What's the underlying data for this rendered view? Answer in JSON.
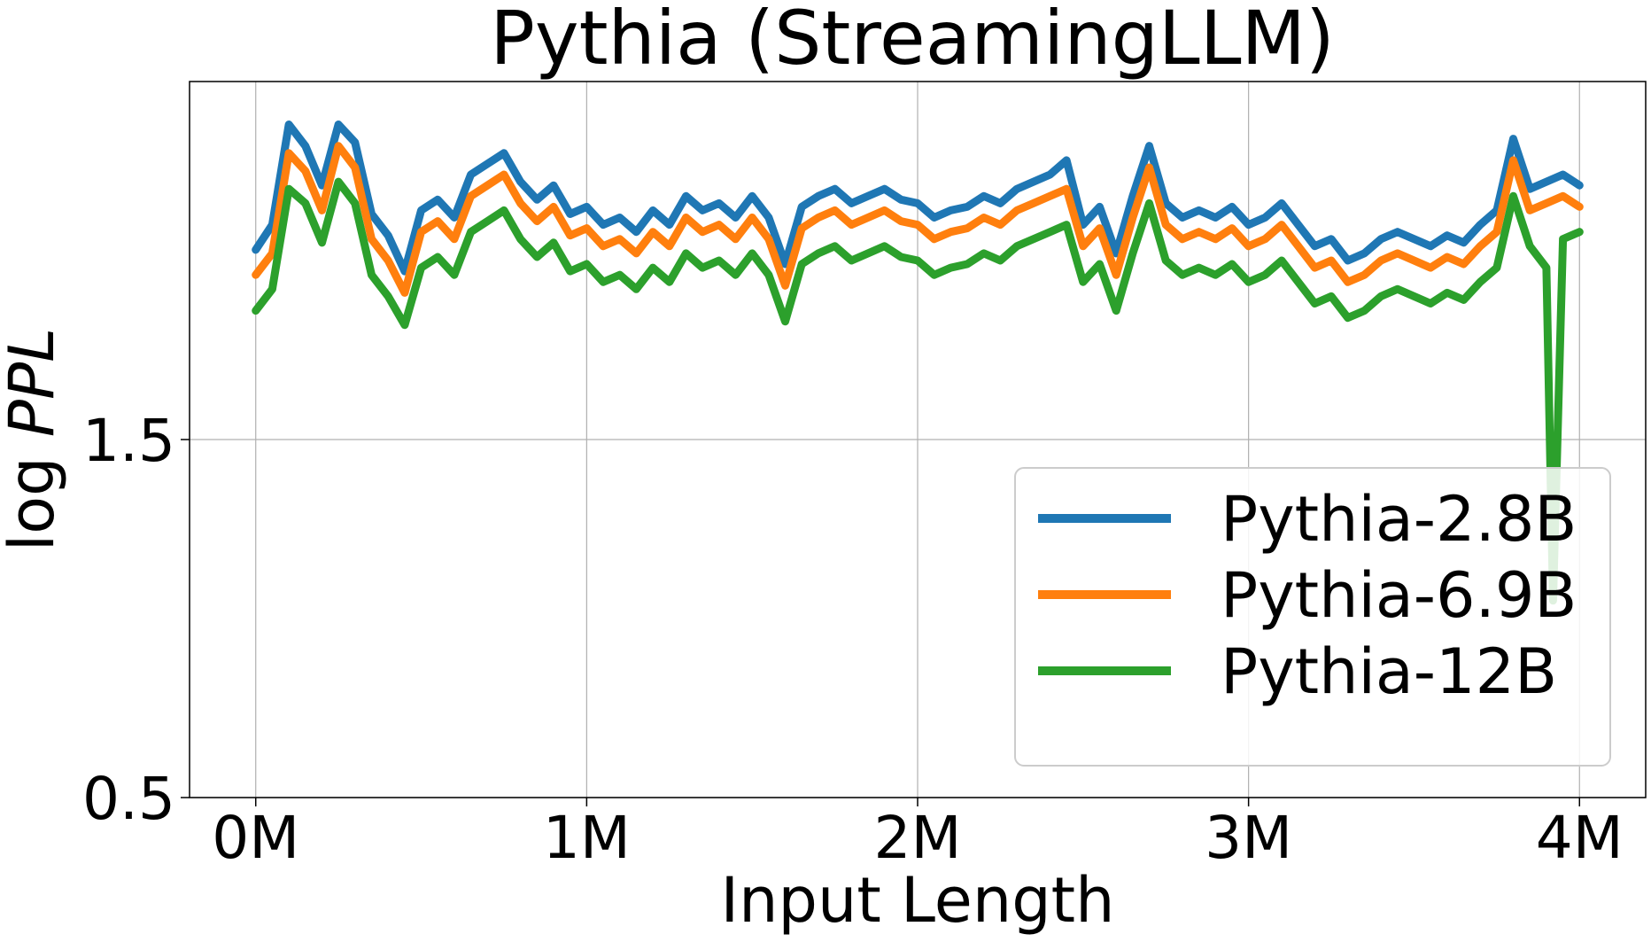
{
  "chart_data": {
    "type": "line",
    "title": "Pythia (StreamingLLM)",
    "xlabel": "Input Length",
    "ylabel": "log PPL",
    "xlim": [
      -0.2,
      4.2
    ],
    "ylim": [
      0.5,
      2.5
    ],
    "x_ticks": [
      0,
      1,
      2,
      3,
      4
    ],
    "x_tick_labels": [
      "0M",
      "1M",
      "2M",
      "3M",
      "4M"
    ],
    "y_ticks": [
      0.5,
      1.5
    ],
    "y_tick_labels": [
      "0.5",
      "1.5"
    ],
    "grid": true,
    "legend_position": "lower-right",
    "series": [
      {
        "name": "Pythia-2.8B",
        "color": "#1f77b4",
        "x": [
          0,
          0.05,
          0.1,
          0.15,
          0.2,
          0.25,
          0.3,
          0.35,
          0.4,
          0.45,
          0.5,
          0.55,
          0.6,
          0.65,
          0.7,
          0.75,
          0.8,
          0.85,
          0.9,
          0.95,
          1.0,
          1.05,
          1.1,
          1.15,
          1.2,
          1.25,
          1.3,
          1.35,
          1.4,
          1.45,
          1.5,
          1.55,
          1.6,
          1.65,
          1.7,
          1.75,
          1.8,
          1.85,
          1.9,
          1.95,
          2.0,
          2.05,
          2.1,
          2.15,
          2.2,
          2.25,
          2.3,
          2.35,
          2.4,
          2.45,
          2.5,
          2.55,
          2.6,
          2.65,
          2.7,
          2.75,
          2.8,
          2.85,
          2.9,
          2.95,
          3.0,
          3.05,
          3.1,
          3.15,
          3.2,
          3.25,
          3.3,
          3.35,
          3.4,
          3.45,
          3.5,
          3.55,
          3.6,
          3.65,
          3.7,
          3.75,
          3.8,
          3.85,
          3.9,
          3.95,
          4.0
        ],
        "y": [
          2.03,
          2.1,
          2.38,
          2.32,
          2.21,
          2.38,
          2.33,
          2.13,
          2.07,
          1.97,
          2.14,
          2.17,
          2.12,
          2.24,
          2.27,
          2.3,
          2.22,
          2.17,
          2.21,
          2.13,
          2.15,
          2.1,
          2.12,
          2.08,
          2.14,
          2.1,
          2.18,
          2.14,
          2.16,
          2.12,
          2.18,
          2.12,
          1.99,
          2.15,
          2.18,
          2.2,
          2.16,
          2.18,
          2.2,
          2.17,
          2.16,
          2.12,
          2.14,
          2.15,
          2.18,
          2.16,
          2.2,
          2.22,
          2.24,
          2.28,
          2.1,
          2.15,
          2.02,
          2.18,
          2.32,
          2.16,
          2.12,
          2.14,
          2.12,
          2.15,
          2.1,
          2.12,
          2.16,
          2.1,
          2.04,
          2.06,
          2.0,
          2.02,
          2.06,
          2.08,
          2.06,
          2.04,
          2.07,
          2.05,
          2.1,
          2.14,
          2.34,
          2.2,
          2.22,
          2.24,
          2.21
        ]
      },
      {
        "name": "Pythia-6.9B",
        "color": "#ff7f0e",
        "x": [
          0,
          0.05,
          0.1,
          0.15,
          0.2,
          0.25,
          0.3,
          0.35,
          0.4,
          0.45,
          0.5,
          0.55,
          0.6,
          0.65,
          0.7,
          0.75,
          0.8,
          0.85,
          0.9,
          0.95,
          1.0,
          1.05,
          1.1,
          1.15,
          1.2,
          1.25,
          1.3,
          1.35,
          1.4,
          1.45,
          1.5,
          1.55,
          1.6,
          1.65,
          1.7,
          1.75,
          1.8,
          1.85,
          1.9,
          1.95,
          2.0,
          2.05,
          2.1,
          2.15,
          2.2,
          2.25,
          2.3,
          2.35,
          2.4,
          2.45,
          2.5,
          2.55,
          2.6,
          2.65,
          2.7,
          2.75,
          2.8,
          2.85,
          2.9,
          2.95,
          3.0,
          3.05,
          3.1,
          3.15,
          3.2,
          3.25,
          3.3,
          3.35,
          3.4,
          3.45,
          3.5,
          3.55,
          3.6,
          3.65,
          3.7,
          3.75,
          3.8,
          3.85,
          3.9,
          3.95,
          4.0
        ],
        "y": [
          1.96,
          2.02,
          2.3,
          2.25,
          2.14,
          2.32,
          2.26,
          2.06,
          2.0,
          1.91,
          2.08,
          2.11,
          2.06,
          2.18,
          2.21,
          2.24,
          2.16,
          2.11,
          2.15,
          2.07,
          2.09,
          2.04,
          2.06,
          2.02,
          2.08,
          2.04,
          2.12,
          2.08,
          2.1,
          2.06,
          2.12,
          2.06,
          1.93,
          2.09,
          2.12,
          2.14,
          2.1,
          2.12,
          2.14,
          2.11,
          2.1,
          2.06,
          2.08,
          2.09,
          2.12,
          2.1,
          2.14,
          2.16,
          2.18,
          2.2,
          2.04,
          2.09,
          1.96,
          2.12,
          2.26,
          2.1,
          2.06,
          2.08,
          2.06,
          2.09,
          2.04,
          2.06,
          2.1,
          2.04,
          1.98,
          2.0,
          1.94,
          1.96,
          2.0,
          2.02,
          2.0,
          1.98,
          2.01,
          1.99,
          2.04,
          2.08,
          2.28,
          2.14,
          2.16,
          2.18,
          2.15
        ]
      },
      {
        "name": "Pythia-12B",
        "color": "#2ca02c",
        "x": [
          0,
          0.05,
          0.1,
          0.15,
          0.2,
          0.25,
          0.3,
          0.35,
          0.4,
          0.45,
          0.5,
          0.55,
          0.6,
          0.65,
          0.7,
          0.75,
          0.8,
          0.85,
          0.9,
          0.95,
          1.0,
          1.05,
          1.1,
          1.15,
          1.2,
          1.25,
          1.3,
          1.35,
          1.4,
          1.45,
          1.5,
          1.55,
          1.6,
          1.65,
          1.7,
          1.75,
          1.8,
          1.85,
          1.9,
          1.95,
          2.0,
          2.05,
          2.1,
          2.15,
          2.2,
          2.25,
          2.3,
          2.35,
          2.4,
          2.45,
          2.5,
          2.55,
          2.6,
          2.65,
          2.7,
          2.75,
          2.8,
          2.85,
          2.9,
          2.95,
          3.0,
          3.05,
          3.1,
          3.15,
          3.2,
          3.25,
          3.3,
          3.35,
          3.4,
          3.45,
          3.5,
          3.55,
          3.6,
          3.65,
          3.7,
          3.75,
          3.8,
          3.85,
          3.9,
          3.92,
          3.95,
          4.0
        ],
        "y": [
          1.86,
          1.92,
          2.2,
          2.16,
          2.05,
          2.22,
          2.16,
          1.96,
          1.9,
          1.82,
          1.98,
          2.01,
          1.96,
          2.08,
          2.11,
          2.14,
          2.06,
          2.01,
          2.05,
          1.97,
          1.99,
          1.94,
          1.96,
          1.92,
          1.98,
          1.94,
          2.02,
          1.98,
          2.0,
          1.96,
          2.02,
          1.96,
          1.83,
          1.99,
          2.02,
          2.04,
          2.0,
          2.02,
          2.04,
          2.01,
          2.0,
          1.96,
          1.98,
          1.99,
          2.02,
          2.0,
          2.04,
          2.06,
          2.08,
          2.1,
          1.94,
          1.99,
          1.86,
          2.02,
          2.16,
          2.0,
          1.96,
          1.98,
          1.96,
          1.99,
          1.94,
          1.96,
          2.0,
          1.94,
          1.88,
          1.9,
          1.84,
          1.86,
          1.9,
          1.92,
          1.9,
          1.88,
          1.91,
          1.89,
          1.94,
          1.98,
          2.18,
          2.04,
          1.98,
          1.05,
          2.06,
          2.08
        ]
      }
    ]
  }
}
